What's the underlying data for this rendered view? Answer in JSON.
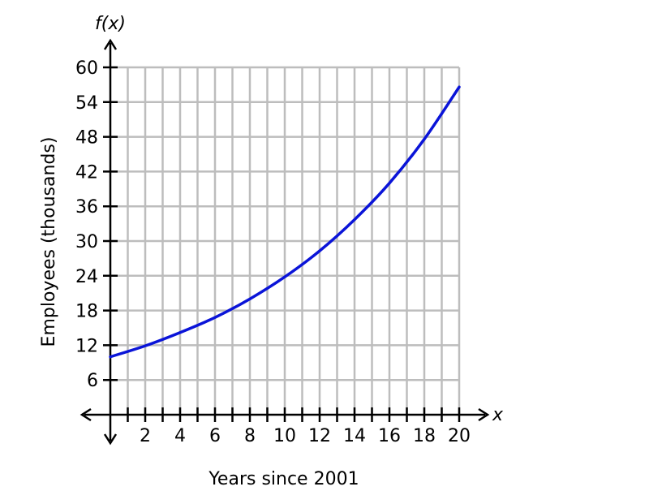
{
  "chart_data": {
    "type": "line",
    "xlabel": "Years since 2001",
    "ylabel": "Employees (thousands)",
    "x_symbol": "x",
    "y_symbol": "f(x)",
    "xlim": [
      0,
      20
    ],
    "ylim": [
      0,
      60
    ],
    "x_ticks": [
      2,
      4,
      6,
      8,
      10,
      12,
      14,
      16,
      18,
      20
    ],
    "y_ticks": [
      6,
      12,
      18,
      24,
      30,
      36,
      42,
      48,
      54,
      60
    ],
    "grid": true,
    "series": [
      {
        "color": "#0a14d8",
        "x": [
          0,
          2,
          4,
          6,
          8,
          10,
          12,
          14,
          16,
          18,
          20
        ],
        "y": [
          10,
          11.9,
          14.2,
          16.8,
          20.0,
          23.8,
          28.3,
          33.7,
          40.0,
          47.6,
          56.6
        ]
      }
    ]
  },
  "colors": {
    "grid": "#bdbdbd",
    "axis": "#000000",
    "curve": "#0a14d8"
  }
}
